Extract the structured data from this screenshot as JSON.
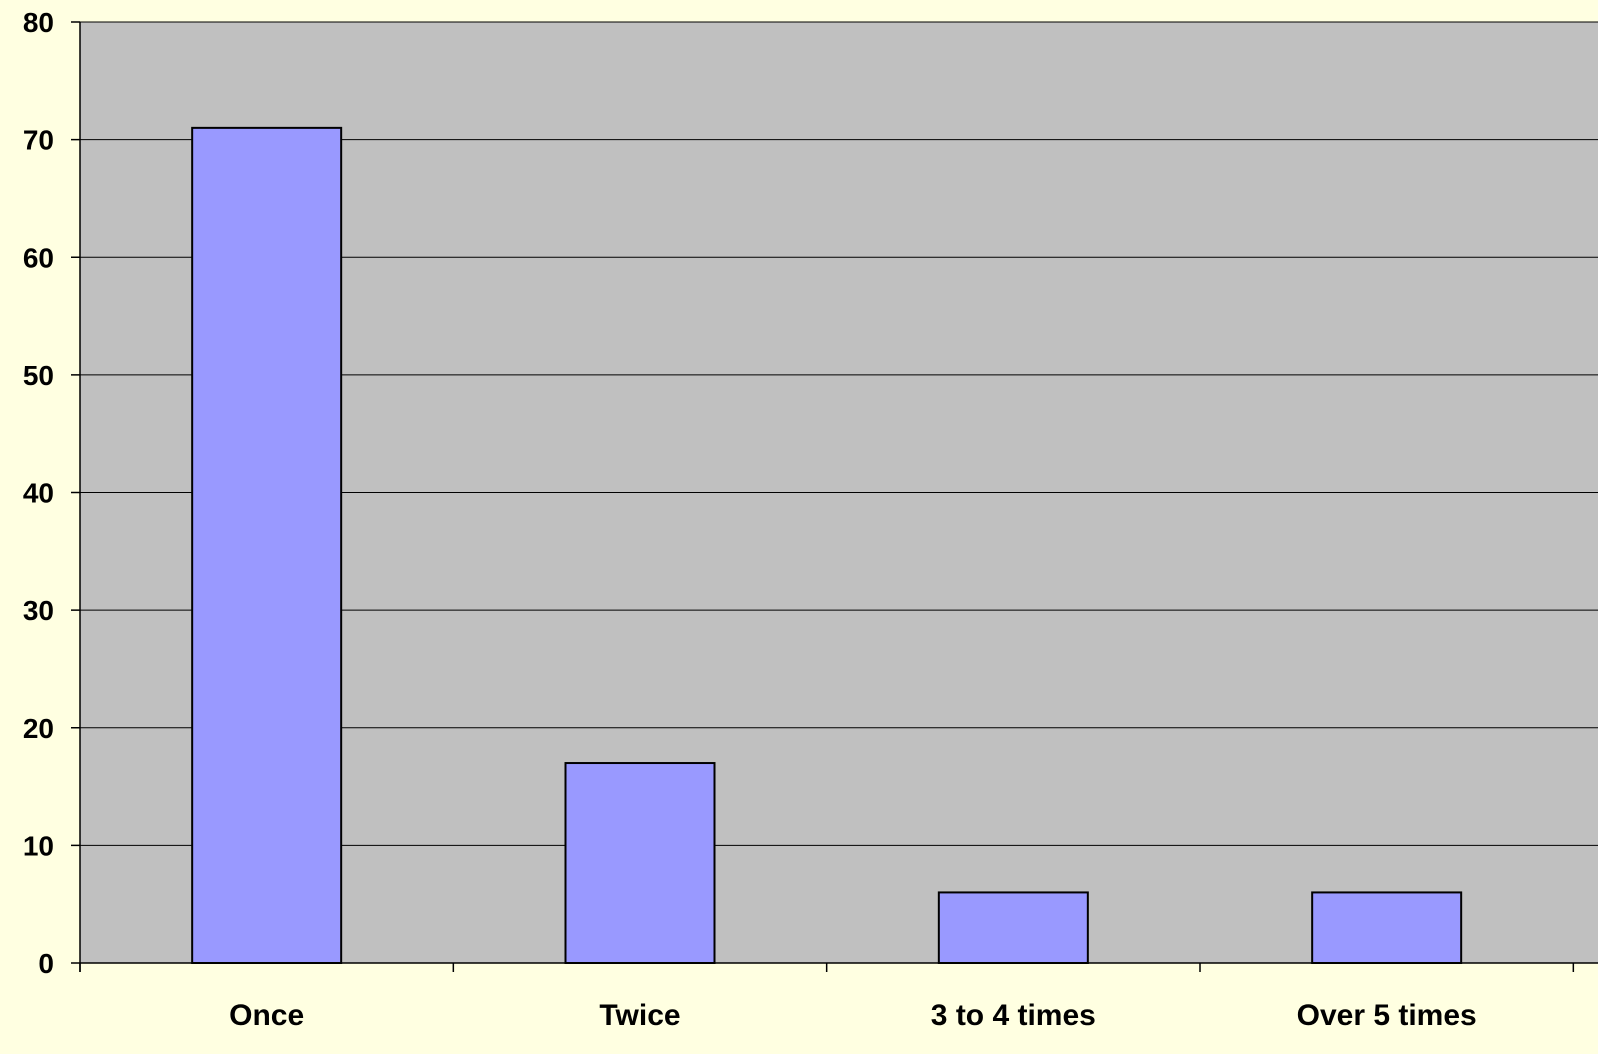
{
  "chart_data": {
    "type": "bar",
    "title": "",
    "xlabel": "",
    "ylabel": "",
    "categories": [
      "Once",
      "Twice",
      "3 to 4 times",
      "Over 5 times"
    ],
    "values": [
      71,
      17,
      6,
      6
    ],
    "ylim": [
      0,
      80
    ],
    "yticks": [
      "0",
      "10",
      "20",
      "30",
      "40",
      "50",
      "60",
      "70",
      "80"
    ],
    "grid": true,
    "legend": "none"
  },
  "colors": {
    "background": "#FFFFE1",
    "plot_area": "#C0C0C0",
    "bar_fill": "#9999FF",
    "bar_stroke": "#000000",
    "gridline": "#000000"
  }
}
